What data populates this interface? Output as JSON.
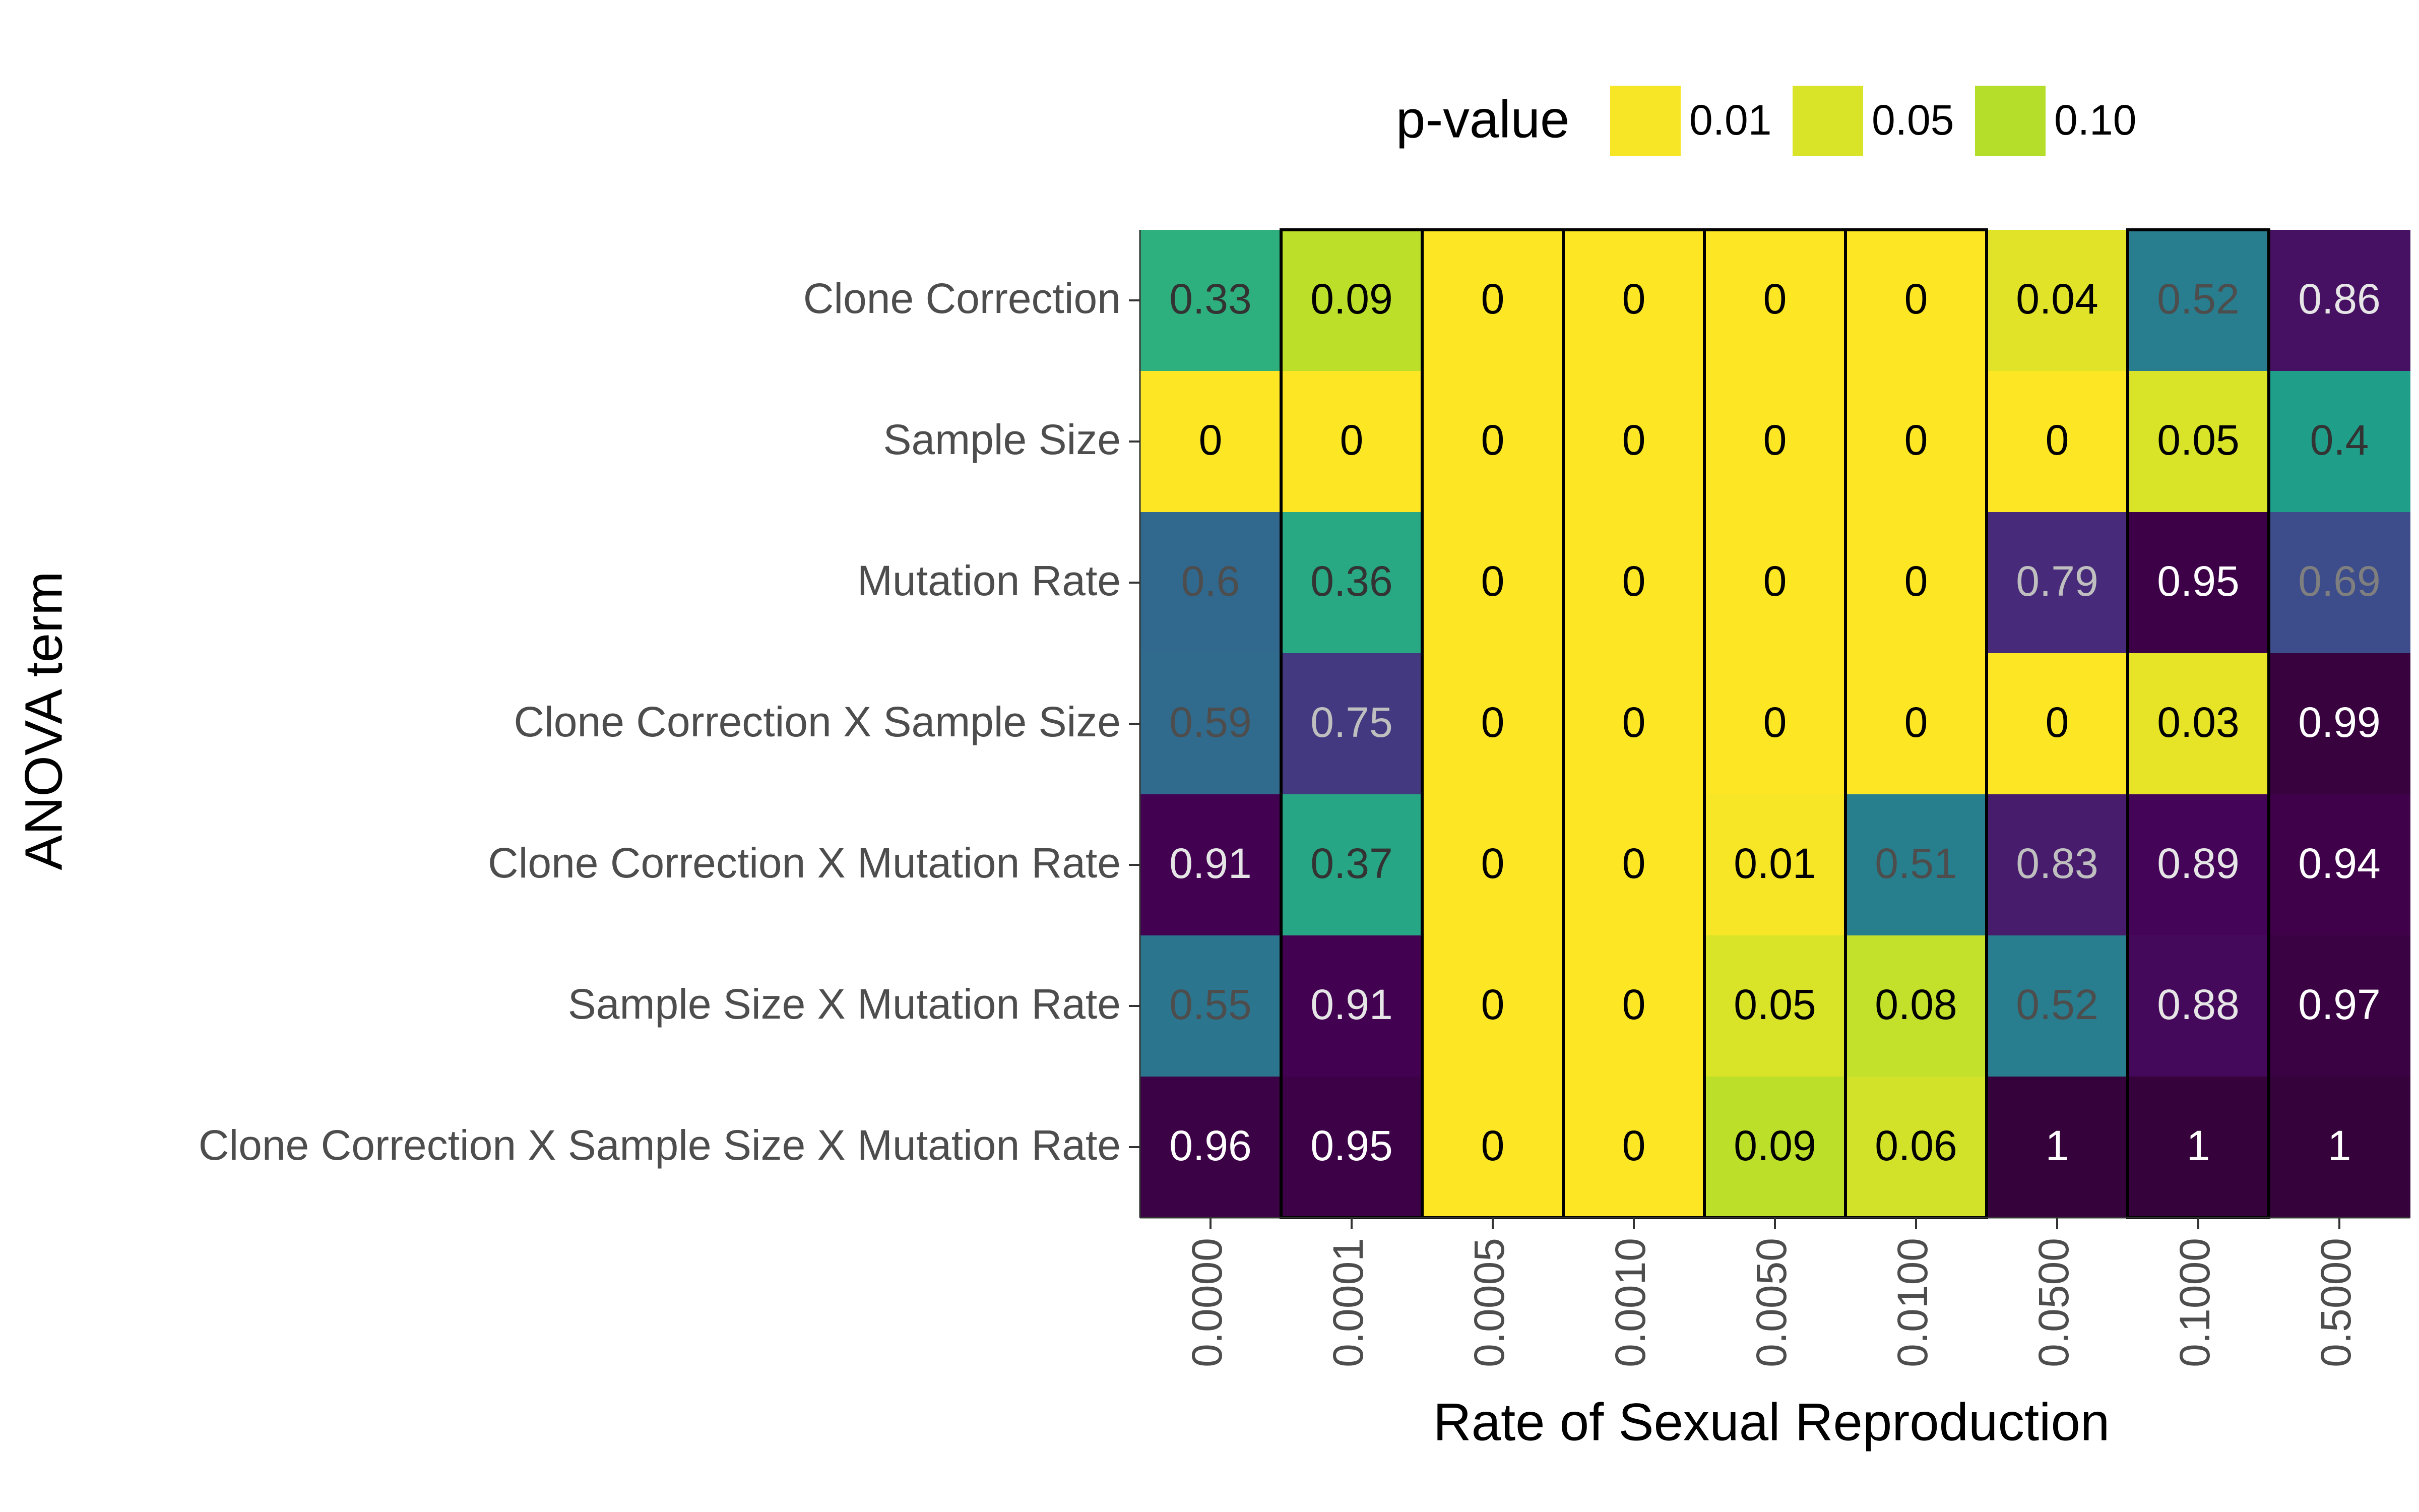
{
  "chart_data": {
    "type": "heatmap",
    "xlabel": "Rate of Sexual Reproduction",
    "ylabel": "ANOVA term",
    "x_categories": [
      "0.0000",
      "0.0001",
      "0.0005",
      "0.0010",
      "0.0050",
      "0.0100",
      "0.0500",
      "0.1000",
      "0.5000"
    ],
    "y_categories": [
      "Clone Correction",
      "Sample Size",
      "Mutation Rate",
      "Clone Correction X Sample Size",
      "Clone Correction X Mutation Rate",
      "Sample Size X Mutation Rate",
      "Clone Correction X Sample Size X Mutation Rate"
    ],
    "values": [
      [
        0.33,
        0.09,
        0,
        0,
        0,
        0,
        0.04,
        0.52,
        0.86
      ],
      [
        0,
        0,
        0,
        0,
        0,
        0,
        0,
        0.05,
        0.4
      ],
      [
        0.6,
        0.36,
        0,
        0,
        0,
        0,
        0.79,
        0.95,
        0.69
      ],
      [
        0.59,
        0.75,
        0,
        0,
        0,
        0,
        0,
        0.03,
        0.99
      ],
      [
        0.91,
        0.37,
        0,
        0,
        0.01,
        0.51,
        0.83,
        0.89,
        0.94
      ],
      [
        0.55,
        0.91,
        0,
        0,
        0.05,
        0.08,
        0.52,
        0.88,
        0.97
      ],
      [
        0.96,
        0.95,
        0,
        0,
        0.09,
        0.06,
        1,
        1,
        1
      ]
    ],
    "cell_labels": [
      [
        "0.33",
        "0.09",
        "0",
        "0",
        "0",
        "0",
        "0.04",
        "0.52",
        "0.86"
      ],
      [
        "0",
        "0",
        "0",
        "0",
        "0",
        "0",
        "0",
        "0.05",
        "0.4"
      ],
      [
        "0.6",
        "0.36",
        "0",
        "0",
        "0",
        "0",
        "0.79",
        "0.95",
        "0.69"
      ],
      [
        "0.59",
        "0.75",
        "0",
        "0",
        "0",
        "0",
        "0",
        "0.03",
        "0.99"
      ],
      [
        "0.91",
        "0.37",
        "0",
        "0",
        "0.01",
        "0.51",
        "0.83",
        "0.89",
        "0.94"
      ],
      [
        "0.55",
        "0.91",
        "0",
        "0",
        "0.05",
        "0.08",
        "0.52",
        "0.88",
        "0.97"
      ],
      [
        "0.96",
        "0.95",
        "0",
        "0",
        "0.09",
        "0.06",
        "1",
        "1",
        "1"
      ]
    ],
    "color_scale": "viridis (reversed: 0 = yellow, 1 = dark purple)",
    "outlined_columns": [
      "0.0001",
      "0.0005",
      "0.0010",
      "0.0050",
      "0.0100",
      "0.1000"
    ],
    "legend": {
      "title": "p-value",
      "position": "top",
      "entries": [
        {
          "label": "0.01",
          "value": 0.01
        },
        {
          "label": "0.05",
          "value": 0.05
        },
        {
          "label": "0.10",
          "value": 0.1
        }
      ]
    },
    "grid": false
  }
}
